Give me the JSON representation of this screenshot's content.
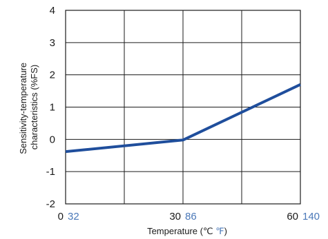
{
  "chart_data": {
    "type": "line",
    "ylabel_line1": "Sensitivity-temperature",
    "ylabel_line2": "characteristics (%FS)",
    "xlabel": {
      "prefix": "Temperature (",
      "celsius_unit": "℃",
      "fahrenheit_unit": "℉",
      "suffix": ")"
    },
    "xlim": [
      0,
      60
    ],
    "ylim": [
      -2,
      4
    ],
    "x_ticks": [
      {
        "value": 0,
        "celsius": "0",
        "fahrenheit": "32"
      },
      {
        "value": 30,
        "celsius": "30",
        "fahrenheit": "86"
      },
      {
        "value": 60,
        "celsius": "60",
        "fahrenheit": "140"
      }
    ],
    "x_gridlines": [
      15,
      30,
      45
    ],
    "y_ticks": [
      {
        "value": 4,
        "label": "4"
      },
      {
        "value": 3,
        "label": "3"
      },
      {
        "value": 2,
        "label": "2"
      },
      {
        "value": 1,
        "label": "1"
      },
      {
        "value": 0,
        "label": "0"
      },
      {
        "value": -1,
        "label": "-1"
      },
      {
        "value": -2,
        "label": "-2"
      }
    ],
    "grid": true,
    "series": [
      {
        "color": "#1f4e9c",
        "x": [
          0,
          30,
          60
        ],
        "y": [
          -0.38,
          -0.02,
          1.7
        ]
      }
    ],
    "colors": {
      "fahrenheit_labels": "#4a78b8",
      "grid": "#1a1a1a"
    }
  }
}
